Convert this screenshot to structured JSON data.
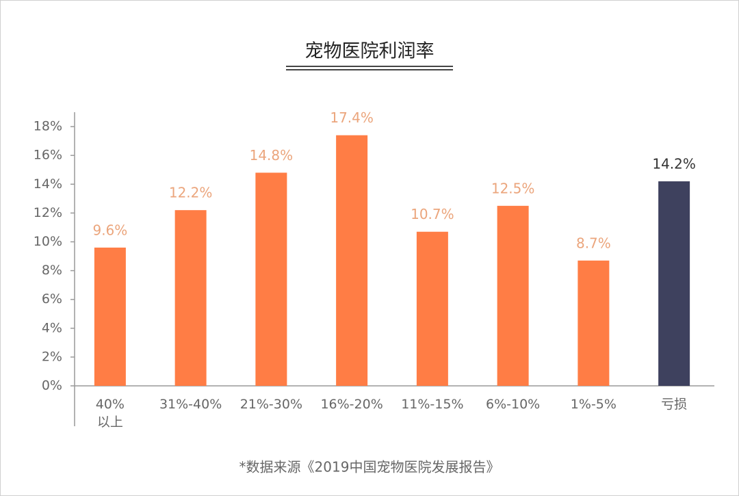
{
  "chart_data": {
    "type": "bar",
    "title": "宠物医院利润率",
    "categories": [
      "40%\n以上",
      "31%-40%",
      "21%-30%",
      "16%-20%",
      "11%-15%",
      "6%-10%",
      "1%-5%",
      "亏损"
    ],
    "values": [
      9.6,
      12.2,
      14.8,
      17.4,
      10.7,
      12.5,
      8.7,
      14.2
    ],
    "value_labels": [
      "9.6%",
      "12.2%",
      "14.8%",
      "17.4%",
      "10.7%",
      "12.5%",
      "8.7%",
      "14.2%"
    ],
    "colors": [
      "#ff7d45",
      "#ff7d45",
      "#ff7d45",
      "#ff7d45",
      "#ff7d45",
      "#ff7d45",
      "#ff7d45",
      "#3e415e"
    ],
    "label_colors": [
      "#eba57c",
      "#eba57c",
      "#eba57c",
      "#eba57c",
      "#eba57c",
      "#eba57c",
      "#eba57c",
      "#333333"
    ],
    "ylim": [
      0,
      19
    ],
    "yticks": [
      {
        "value": 0,
        "label": "0%"
      },
      {
        "value": 2,
        "label": "2%"
      },
      {
        "value": 4,
        "label": "4%"
      },
      {
        "value": 6,
        "label": "6%"
      },
      {
        "value": 8,
        "label": "8%"
      },
      {
        "value": 10,
        "label": "10%"
      },
      {
        "value": 12,
        "label": "12%"
      },
      {
        "value": 14,
        "label": "14%"
      },
      {
        "value": 16,
        "label": "16%"
      },
      {
        "value": 18,
        "label": "18%"
      }
    ],
    "grid": false,
    "footnote": "*数据来源《2019中国宠物医院发展报告》"
  }
}
